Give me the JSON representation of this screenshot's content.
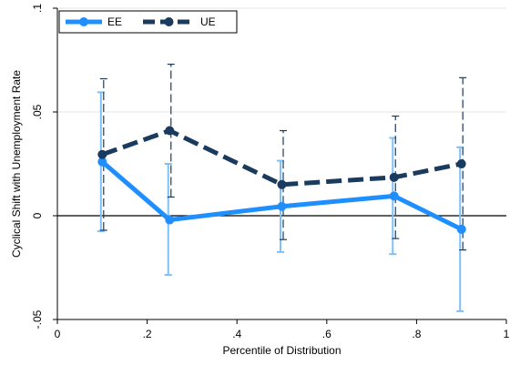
{
  "chart_data": {
    "type": "line",
    "title": "",
    "xlabel": "Percentile of Distribution",
    "ylabel": "Cyclical Shift with Unemployment  Rate",
    "xlim": [
      0,
      1
    ],
    "ylim": [
      -0.05,
      0.1
    ],
    "x_ticks": [
      0,
      0.2,
      0.4,
      0.6,
      0.8,
      1
    ],
    "x_tick_labels": [
      "0",
      ".2",
      ".4",
      ".6",
      ".8",
      "1"
    ],
    "y_ticks": [
      -0.05,
      0,
      0.05,
      0.1
    ],
    "y_tick_labels": [
      "-.05",
      "0",
      ".05",
      ".1"
    ],
    "reference_line_y": 0,
    "grid": true,
    "legend_position": "top-left",
    "x": [
      0.1,
      0.25,
      0.5,
      0.75,
      0.9
    ],
    "series": [
      {
        "name": "EE",
        "style": "solid",
        "color": "#1f8fff",
        "ci_color": "#7fc0f8",
        "values": [
          0.026,
          -0.002,
          0.0045,
          0.0095,
          -0.0065
        ],
        "ci_low": [
          -0.0075,
          -0.0285,
          -0.0175,
          -0.0185,
          -0.046
        ],
        "ci_high": [
          0.0595,
          0.025,
          0.0265,
          0.0375,
          0.033
        ]
      },
      {
        "name": "UE",
        "style": "dash",
        "color": "#1a3b5e",
        "ci_color": "#1a3b5e",
        "values": [
          0.0295,
          0.041,
          0.015,
          0.0185,
          0.025
        ],
        "ci_low": [
          -0.007,
          0.009,
          -0.0115,
          -0.011,
          -0.0165
        ],
        "ci_high": [
          0.066,
          0.073,
          0.041,
          0.048,
          0.0665
        ]
      }
    ]
  }
}
